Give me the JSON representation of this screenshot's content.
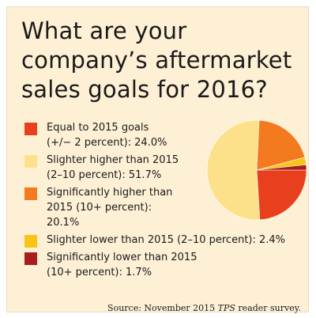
{
  "title_lines": [
    "What are your",
    "company’s aftermarket",
    "sales goals for 2016?"
  ],
  "legend_items": [
    {
      "lines": [
        "Equal to 2015 goals",
        "(+/− 2 percent): 24.0%"
      ],
      "color": "#e8401c"
    },
    {
      "lines": [
        "Slighter higher than 2015",
        "(2–10 percent): 51.7%"
      ],
      "color": "#fde08a"
    },
    {
      "lines": [
        "Significantly higher than",
        "2015 (10+ percent):",
        "20.1%"
      ],
      "color": "#f47a20"
    },
    {
      "lines": [
        "Slighter lower than 2015 (2–10 percent): 2.4%"
      ],
      "color": "#f8c418"
    },
    {
      "lines": [
        "Significantly lower than 2015",
        "(10+ percent): 1.7%"
      ],
      "color": "#a81e1e"
    }
  ],
  "source": {
    "prefix": "Source: November 2015 ",
    "publication": "TPS",
    "suffix": " reader survey."
  },
  "chart_data": {
    "type": "pie",
    "start_angle_deg": 0,
    "direction": "clockwise",
    "categories": [
      "Equal to 2015 goals (+/− 2 percent)",
      "Slighter higher than 2015 (2–10 percent)",
      "Significantly higher than 2015 (10+ percent)",
      "Slighter lower than 2015 (2–10 percent)",
      "Significantly lower than 2015 (10+ percent)"
    ],
    "values": [
      24.0,
      51.7,
      20.1,
      2.4,
      1.7
    ],
    "colors": [
      "#e8401c",
      "#fde08a",
      "#f47a20",
      "#f8c418",
      "#a81e1e"
    ],
    "unit": "%"
  }
}
